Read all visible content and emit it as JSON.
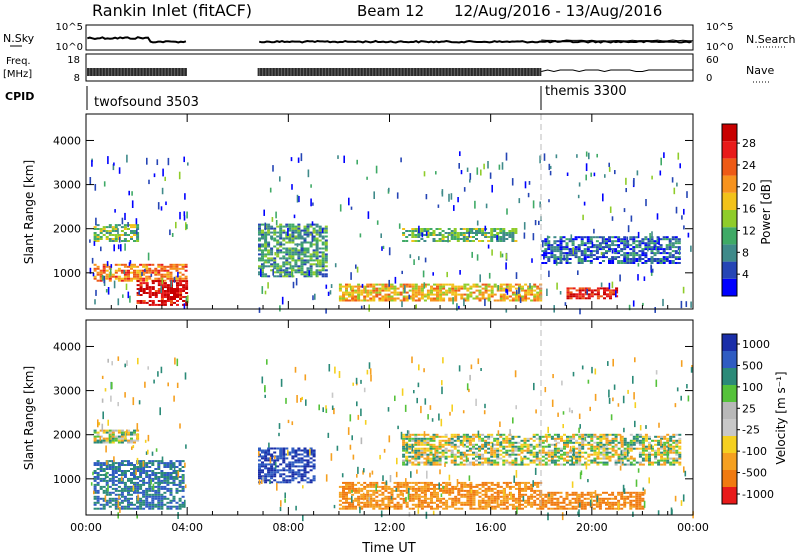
{
  "header": {
    "station": "Rankin Inlet (fitACF)",
    "beam": "Beam 12",
    "dates": "12/Aug/2016 - 13/Aug/2016"
  },
  "strips": {
    "nsky": {
      "label": "N.Sky",
      "tick_top": "10^5",
      "tick_bottom": "10^0",
      "right_tick_top": "10^5",
      "right_tick_bottom": "10^0",
      "right_label": "N.Search"
    },
    "freq": {
      "label_line1": "Freq.",
      "label_line2": "[MHz]",
      "tick_top": "18",
      "tick_bottom": "8",
      "right_tick_top": "60",
      "right_tick_bottom": "0",
      "right_label": "Nave"
    },
    "cpid": {
      "label": "CPID",
      "modes": [
        {
          "name": "twofsound 3503",
          "start_hour": 0
        },
        {
          "name": "themis 3300",
          "start_hour": 18
        }
      ]
    }
  },
  "power_panel": {
    "ylabel": "Slant Range [km]",
    "colorbar_label": "Power [dB]"
  },
  "velocity_panel": {
    "ylabel": "Slant Range [km]",
    "colorbar_label": "Velocity [m s⁻¹]"
  },
  "xaxis": {
    "label": "Time UT"
  },
  "colors": {
    "power_scale": [
      "#0000ff",
      "#2545b5",
      "#3f8a8a",
      "#3faa66",
      "#8fcc2a",
      "#f2c21a",
      "#f7931e",
      "#ee5a16",
      "#e81a1a",
      "#c80000"
    ],
    "velocity_scale": [
      "#1a2ea8",
      "#2f5cc2",
      "#2b8a78",
      "#55c23a",
      "#b8b8b8",
      "#c8c8c8",
      "#f5d020",
      "#f5a020",
      "#f07a10",
      "#e81a1a"
    ]
  },
  "chart_data": [
    {
      "type": "heatmap",
      "title": "Power",
      "quantity": "Power [dB]",
      "xlabel": "Time UT",
      "ylabel": "Slant Range [km]",
      "x_ticks": [
        "00:00",
        "04:00",
        "08:00",
        "12:00",
        "16:00",
        "20:00",
        "00:00"
      ],
      "y_ticks": [
        1000,
        2000,
        3000,
        4000
      ],
      "xlim_hours": [
        0,
        24
      ],
      "ylim_km": [
        180,
        4600
      ],
      "data_gap_hours": [
        4.0,
        6.8
      ],
      "colorbar_ticks": [
        4,
        8,
        12,
        16,
        20,
        24,
        28
      ],
      "colorbar_range": [
        0,
        31.5
      ],
      "echo_regions": [
        {
          "t0": 0.3,
          "t1": 4.0,
          "r0": 800,
          "r1": 1200,
          "level": 22
        },
        {
          "t0": 2.0,
          "t1": 4.0,
          "r0": 250,
          "r1": 800,
          "level": 30
        },
        {
          "t0": 0.3,
          "t1": 2.0,
          "r0": 1700,
          "r1": 2100,
          "level": 13
        },
        {
          "t0": 6.8,
          "t1": 9.5,
          "r0": 900,
          "r1": 2100,
          "level": 10
        },
        {
          "t0": 10.0,
          "t1": 18.0,
          "r0": 350,
          "r1": 750,
          "level": 19
        },
        {
          "t0": 12.5,
          "t1": 17.0,
          "r0": 1700,
          "r1": 2000,
          "level": 12
        },
        {
          "t0": 18.0,
          "t1": 23.5,
          "r0": 1200,
          "r1": 1800,
          "level": 6
        },
        {
          "t0": 19.0,
          "t1": 21.0,
          "r0": 400,
          "r1": 650,
          "level": 28
        }
      ]
    },
    {
      "type": "heatmap",
      "title": "Velocity",
      "quantity": "Velocity [m s⁻¹]",
      "xlabel": "Time UT",
      "ylabel": "Slant Range [km]",
      "x_ticks": [
        "00:00",
        "04:00",
        "08:00",
        "12:00",
        "16:00",
        "20:00",
        "00:00"
      ],
      "y_ticks": [
        1000,
        2000,
        3000,
        4000
      ],
      "xlim_hours": [
        0,
        24
      ],
      "ylim_km": [
        180,
        4600
      ],
      "data_gap_hours": [
        4.0,
        6.8
      ],
      "colorbar_ticks": [
        1000,
        500,
        100,
        25,
        -25,
        -100,
        -500,
        -1000
      ],
      "echo_regions": [
        {
          "t0": 0.3,
          "t1": 3.8,
          "r0": 300,
          "r1": 1400,
          "velocity": 300
        },
        {
          "t0": 0.3,
          "t1": 2.0,
          "r0": 1800,
          "r1": 2100,
          "velocity": 0
        },
        {
          "t0": 6.8,
          "t1": 9.0,
          "r0": 900,
          "r1": 1700,
          "velocity": 700
        },
        {
          "t0": 10.0,
          "t1": 18.0,
          "r0": 300,
          "r1": 900,
          "velocity": -300
        },
        {
          "t0": 12.5,
          "t1": 23.5,
          "r0": 1300,
          "r1": 2000,
          "velocity": 0
        },
        {
          "t0": 18.0,
          "t1": 22.0,
          "r0": 300,
          "r1": 700,
          "velocity": -400
        }
      ]
    }
  ]
}
